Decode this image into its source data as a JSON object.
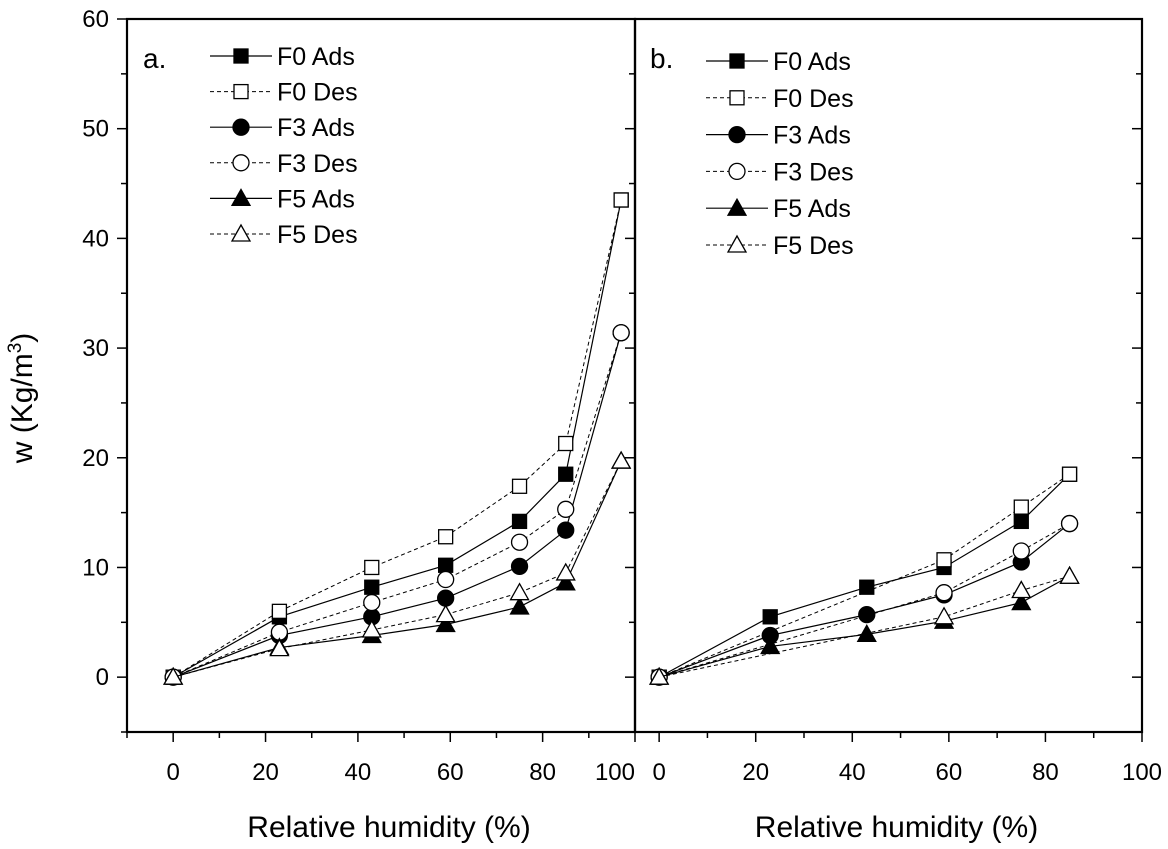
{
  "ylabel_main": "w (Kg/m",
  "ylabel_sup": "3",
  "ylabel_close": ")",
  "chart_data": [
    {
      "type": "line",
      "panel_label": "a.",
      "xlabel": "Relative humidity (%)",
      "xlim": [
        -10,
        100
      ],
      "ylim": [
        -5,
        60
      ],
      "x_ticks": [
        0,
        20,
        40,
        60,
        80,
        100
      ],
      "y_ticks": [
        0,
        10,
        20,
        30,
        40,
        50,
        60
      ],
      "grid": false,
      "legend": "top-left",
      "series": [
        {
          "name": "F0 Ads",
          "marker": "square",
          "filled": true,
          "dashed": false,
          "x": [
            0,
            23,
            43,
            59,
            75,
            85,
            97
          ],
          "y": [
            0,
            5.5,
            8.2,
            10.2,
            14.2,
            18.5,
            43.5
          ]
        },
        {
          "name": "F0 Des",
          "marker": "square",
          "filled": false,
          "dashed": true,
          "x": [
            0,
            23,
            43,
            59,
            75,
            85,
            97
          ],
          "y": [
            0,
            6.0,
            10.0,
            12.8,
            17.4,
            21.3,
            43.5
          ]
        },
        {
          "name": "F3 Ads",
          "marker": "circle",
          "filled": true,
          "dashed": false,
          "x": [
            0,
            23,
            43,
            59,
            75,
            85,
            97
          ],
          "y": [
            0,
            3.8,
            5.5,
            7.2,
            10.1,
            13.4,
            31.4
          ]
        },
        {
          "name": "F3 Des",
          "marker": "circle",
          "filled": false,
          "dashed": true,
          "x": [
            0,
            23,
            43,
            59,
            75,
            85,
            97
          ],
          "y": [
            0,
            4.1,
            6.8,
            8.9,
            12.3,
            15.3,
            31.4
          ]
        },
        {
          "name": "F5 Ads",
          "marker": "triangle",
          "filled": true,
          "dashed": false,
          "x": [
            0,
            23,
            43,
            59,
            75,
            85,
            97
          ],
          "y": [
            0,
            2.7,
            3.8,
            4.8,
            6.4,
            8.6,
            19.7
          ]
        },
        {
          "name": "F5 Des",
          "marker": "triangle",
          "filled": false,
          "dashed": true,
          "x": [
            0,
            23,
            43,
            59,
            75,
            85,
            97
          ],
          "y": [
            0,
            2.6,
            4.3,
            5.7,
            7.7,
            9.5,
            19.7
          ]
        }
      ]
    },
    {
      "type": "line",
      "panel_label": "b.",
      "xlabel": "Relative humidity (%)",
      "xlim": [
        -5,
        100
      ],
      "ylim": [
        -5,
        60
      ],
      "x_ticks": [
        0,
        20,
        40,
        60,
        80,
        100
      ],
      "y_ticks": [
        0,
        10,
        20,
        30,
        40,
        50,
        60
      ],
      "grid": false,
      "legend": "top-left",
      "series": [
        {
          "name": "F0 Ads",
          "marker": "square",
          "filled": true,
          "dashed": false,
          "x": [
            0,
            23,
            43,
            59,
            75,
            85
          ],
          "y": [
            0,
            5.5,
            8.2,
            10.0,
            14.2,
            18.5
          ]
        },
        {
          "name": "F0 Des",
          "marker": "square",
          "filled": false,
          "dashed": true,
          "x": [
            0,
            59,
            75,
            85
          ],
          "y": [
            0,
            10.7,
            15.5,
            18.5
          ]
        },
        {
          "name": "F3 Ads",
          "marker": "circle",
          "filled": true,
          "dashed": false,
          "x": [
            0,
            23,
            43,
            59,
            75,
            85
          ],
          "y": [
            0,
            3.8,
            5.7,
            7.5,
            10.5,
            14.0
          ]
        },
        {
          "name": "F3 Des",
          "marker": "circle",
          "filled": false,
          "dashed": true,
          "x": [
            0,
            59,
            75,
            85
          ],
          "y": [
            0,
            7.7,
            11.5,
            14.0
          ]
        },
        {
          "name": "F5 Ads",
          "marker": "triangle",
          "filled": true,
          "dashed": false,
          "x": [
            0,
            23,
            43,
            59,
            75,
            85
          ],
          "y": [
            0,
            2.8,
            3.9,
            5.1,
            6.8,
            9.2
          ]
        },
        {
          "name": "F5 Des",
          "marker": "triangle",
          "filled": false,
          "dashed": true,
          "x": [
            0,
            59,
            75,
            85
          ],
          "y": [
            0,
            5.5,
            7.9,
            9.2
          ]
        }
      ]
    }
  ]
}
